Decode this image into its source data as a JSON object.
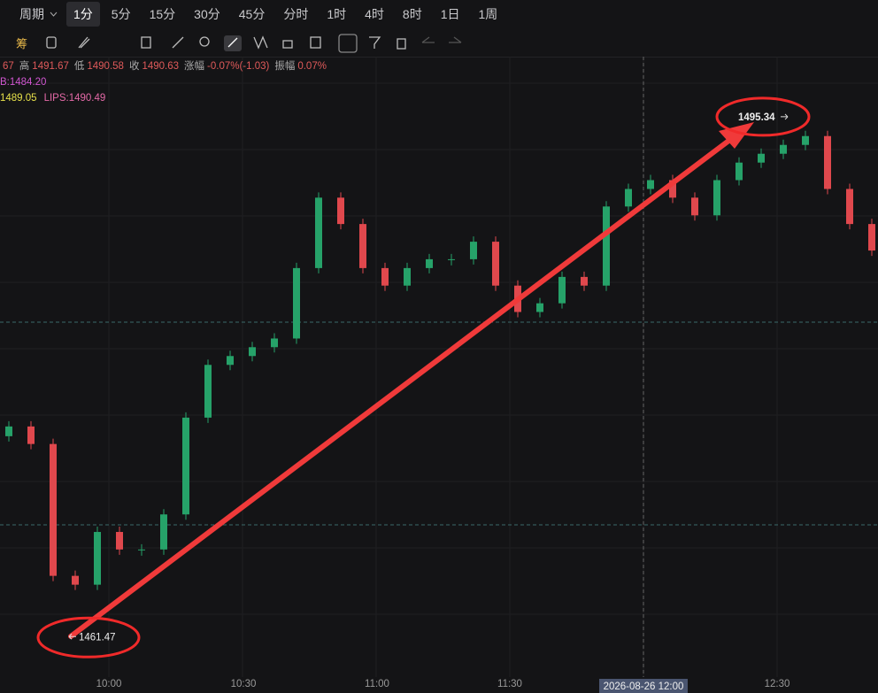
{
  "toolbar": {
    "period_label": "周期",
    "periods": [
      "1分",
      "5分",
      "15分",
      "30分",
      "45分",
      "分时",
      "1时",
      "4时",
      "8时",
      "1日",
      "1周"
    ],
    "active_period": 0,
    "chip_label": "筹"
  },
  "legend": {
    "ohlc": [
      {
        "label": "",
        "value": "67"
      },
      {
        "label": "高",
        "value": "1491.67"
      },
      {
        "label": "低",
        "value": "1490.58"
      },
      {
        "label": "收",
        "value": "1490.63"
      },
      {
        "label": "涨幅",
        "value": "-0.07%(-1.03)"
      },
      {
        "label": "振幅",
        "value": "0.07%"
      }
    ],
    "indicator_1": "B:1484.20",
    "indicator_2a": "1489.05",
    "indicator_2b": "LIPS:1490.49"
  },
  "chart_data": {
    "type": "candlestick",
    "ylim": [
      1458.7,
      1499.4
    ],
    "open": [
      1474.5,
      1475.14,
      1473.99,
      1465.34,
      1464.76,
      1468.22,
      1467.07,
      1467.07,
      1469.37,
      1475.72,
      1479.18,
      1479.76,
      1480.34,
      1480.91,
      1485.53,
      1490.15,
      1488.42,
      1485.53,
      1484.38,
      1485.53,
      1486.11,
      1486.11,
      1487.26,
      1484.38,
      1482.65,
      1483.22,
      1484.95,
      1484.38,
      1489.57,
      1490.72,
      1491.3,
      1490.15,
      1488.99,
      1491.3,
      1492.45,
      1493.03,
      1493.61,
      1494.19,
      1490.72,
      1488.42
    ],
    "close": [
      1475.14,
      1473.99,
      1465.34,
      1464.76,
      1468.22,
      1467.07,
      1467.07,
      1469.37,
      1475.72,
      1479.18,
      1479.76,
      1480.34,
      1480.91,
      1485.53,
      1490.15,
      1488.42,
      1485.53,
      1484.38,
      1485.53,
      1486.11,
      1486.11,
      1487.26,
      1484.38,
      1482.65,
      1483.22,
      1484.95,
      1484.38,
      1489.57,
      1490.72,
      1491.3,
      1490.15,
      1488.99,
      1491.3,
      1492.45,
      1493.03,
      1493.61,
      1494.19,
      1490.72,
      1488.42,
      1486.68
    ],
    "up_color": "#26a269",
    "down_color": "#e0484d",
    "low_marker": {
      "value": 1461.47
    },
    "high_marker": {
      "value": 1495.34
    },
    "x_labels": [
      "10:00",
      "10:30",
      "11:00",
      "11:30",
      "12:30"
    ],
    "crosshair_label": "2026-08-26 12:00"
  }
}
